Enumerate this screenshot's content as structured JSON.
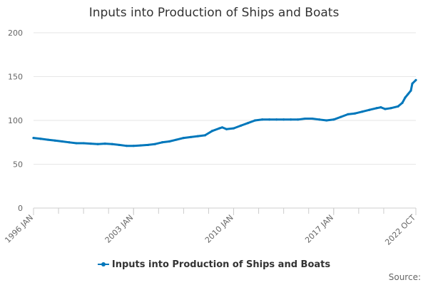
{
  "chart_data": {
    "type": "line",
    "title": "Inputs into Production of Ships and Boats",
    "xlabel": "",
    "ylabel": "",
    "ylim": [
      0,
      200
    ],
    "yticks": [
      0,
      50,
      100,
      150,
      200
    ],
    "x_tick_labels": [
      {
        "label": "1996 JAN",
        "x": 1996.0
      },
      {
        "label": "2003 JAN",
        "x": 2003.0
      },
      {
        "label": "2010 JAN",
        "x": 2010.0
      },
      {
        "label": "2017 JAN",
        "x": 2017.0
      },
      {
        "label": "2022 OCT",
        "x": 2022.75
      }
    ],
    "xlim": [
      1996.0,
      2022.75
    ],
    "grid": true,
    "legend": "bottom-center",
    "series": [
      {
        "name": "Inputs into Production of Ships and Boats",
        "color": "#0077bb",
        "points": [
          [
            1996.0,
            80
          ],
          [
            1996.5,
            79
          ],
          [
            1997.0,
            78
          ],
          [
            1997.5,
            77
          ],
          [
            1998.0,
            76
          ],
          [
            1998.5,
            75
          ],
          [
            1999.0,
            74
          ],
          [
            1999.5,
            74
          ],
          [
            2000.0,
            73.5
          ],
          [
            2000.5,
            73
          ],
          [
            2001.0,
            73.5
          ],
          [
            2001.5,
            73
          ],
          [
            2002.0,
            72
          ],
          [
            2002.5,
            71
          ],
          [
            2003.0,
            71
          ],
          [
            2003.5,
            71.5
          ],
          [
            2004.0,
            72
          ],
          [
            2004.5,
            73
          ],
          [
            2005.0,
            75
          ],
          [
            2005.5,
            76
          ],
          [
            2006.0,
            78
          ],
          [
            2006.5,
            80
          ],
          [
            2007.0,
            81
          ],
          [
            2007.5,
            82
          ],
          [
            2008.0,
            83
          ],
          [
            2008.5,
            88
          ],
          [
            2009.0,
            91
          ],
          [
            2009.2,
            92
          ],
          [
            2009.5,
            90
          ],
          [
            2010.0,
            91
          ],
          [
            2010.5,
            94
          ],
          [
            2011.0,
            97
          ],
          [
            2011.5,
            100
          ],
          [
            2012.0,
            101
          ],
          [
            2012.5,
            101
          ],
          [
            2013.0,
            101
          ],
          [
            2013.5,
            101
          ],
          [
            2014.0,
            101
          ],
          [
            2014.5,
            101
          ],
          [
            2015.0,
            102
          ],
          [
            2015.5,
            102
          ],
          [
            2016.0,
            101
          ],
          [
            2016.5,
            100
          ],
          [
            2017.0,
            101
          ],
          [
            2017.5,
            104
          ],
          [
            2018.0,
            107
          ],
          [
            2018.5,
            108
          ],
          [
            2019.0,
            110
          ],
          [
            2019.5,
            112
          ],
          [
            2020.0,
            114
          ],
          [
            2020.3,
            115
          ],
          [
            2020.6,
            113
          ],
          [
            2021.0,
            114
          ],
          [
            2021.5,
            116
          ],
          [
            2021.8,
            120
          ],
          [
            2022.0,
            126
          ],
          [
            2022.2,
            130
          ],
          [
            2022.4,
            134
          ],
          [
            2022.5,
            142
          ],
          [
            2022.75,
            146
          ]
        ]
      }
    ]
  },
  "legend": {
    "label": "Inputs into Production of Ships and Boats"
  },
  "source": {
    "label": "Source:"
  }
}
